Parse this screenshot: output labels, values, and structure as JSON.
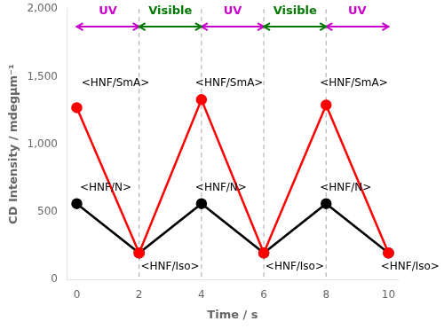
{
  "chart_data": {
    "type": "line",
    "xlabel": "Time / s",
    "ylabel": "CD Intensity / mdegμm⁻¹",
    "x": [
      0,
      2,
      4,
      6,
      8,
      10
    ],
    "series": [
      {
        "color": "#ff0000",
        "values": [
          1270,
          195,
          1330,
          195,
          1290,
          195
        ],
        "marker": "circle",
        "line_style": "solid"
      },
      {
        "color": "#000000",
        "values": [
          560,
          195,
          560,
          195,
          560,
          195
        ],
        "marker": "circle",
        "line_style": "solid"
      }
    ],
    "xlim": [
      -0.3,
      10.3
    ],
    "ylim": [
      0,
      2000
    ],
    "xticks": [
      0,
      2,
      4,
      6,
      8,
      10
    ],
    "yticks": [
      0,
      500,
      1000,
      1500,
      2000
    ],
    "grid": false,
    "vlines": [
      2,
      4,
      6,
      8
    ],
    "annotations": [
      {
        "text": "<HNF/SmA>",
        "x": 0.15,
        "y": 1410
      },
      {
        "text": "<HNF/SmA>",
        "x": 3.8,
        "y": 1410
      },
      {
        "text": "<HNF/SmA>",
        "x": 7.8,
        "y": 1410
      },
      {
        "text": "<HNF/N>",
        "x": 0.1,
        "y": 640
      },
      {
        "text": "<HNF/N>",
        "x": 3.8,
        "y": 640
      },
      {
        "text": "<HNF/N>",
        "x": 7.8,
        "y": 640
      },
      {
        "text": "<HNF/Iso>",
        "x": 2.05,
        "y": 55
      },
      {
        "text": "<HNF/Iso>",
        "x": 6.05,
        "y": 55
      },
      {
        "text": "<HNF/Iso>",
        "x": 9.75,
        "y": 55
      }
    ],
    "ranges": [
      {
        "label": "UV",
        "color": "#cc00cc",
        "start": 0,
        "end": 2,
        "y": 1870,
        "label_y": 1940
      },
      {
        "label": "UV",
        "color": "#cc00cc",
        "start": 4,
        "end": 6,
        "y": 1870,
        "label_y": 1940
      },
      {
        "label": "UV",
        "color": "#cc00cc",
        "start": 8,
        "end": 10,
        "y": 1870,
        "label_y": 1940
      },
      {
        "label": "Visible",
        "color": "#007700",
        "start": 2,
        "end": 4,
        "y": 1870,
        "label_y": 1940
      },
      {
        "label": "Visible",
        "color": "#007700",
        "start": 6,
        "end": 8,
        "y": 1870,
        "label_y": 1940
      }
    ]
  }
}
